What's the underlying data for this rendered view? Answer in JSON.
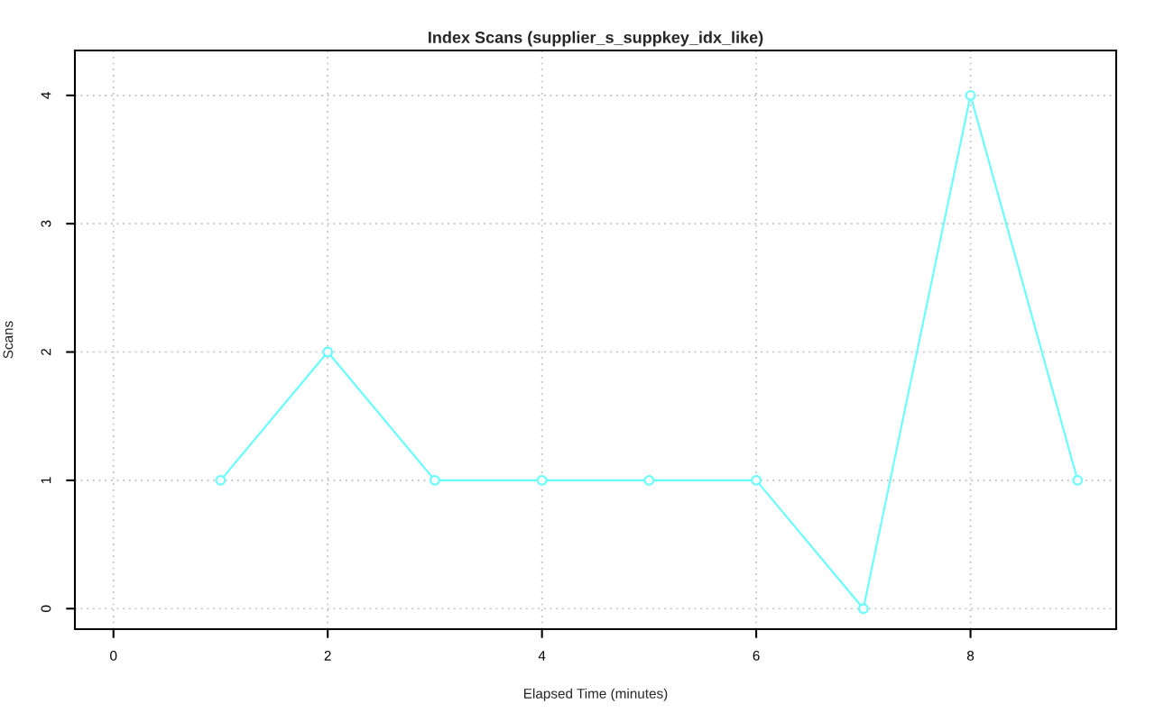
{
  "chart_data": {
    "type": "line",
    "title": "Index Scans (supplier_s_suppkey_idx_like)",
    "xlabel": "Elapsed Time (minutes)",
    "ylabel": "Scans",
    "x": [
      1,
      2,
      3,
      4,
      5,
      6,
      7,
      8,
      9
    ],
    "series": [
      {
        "color": "#66ffff",
        "values": [
          1,
          2,
          1,
          1,
          1,
          1,
          0,
          4,
          1
        ]
      }
    ],
    "xlim": [
      -0.36,
      9.36
    ],
    "ylim": [
      -0.16,
      4.35
    ],
    "xticks": [
      0,
      2,
      4,
      6,
      8
    ],
    "yticks": [
      0,
      1,
      2,
      3,
      4
    ],
    "grid": true,
    "marker": "circle",
    "line_style": "solid"
  }
}
